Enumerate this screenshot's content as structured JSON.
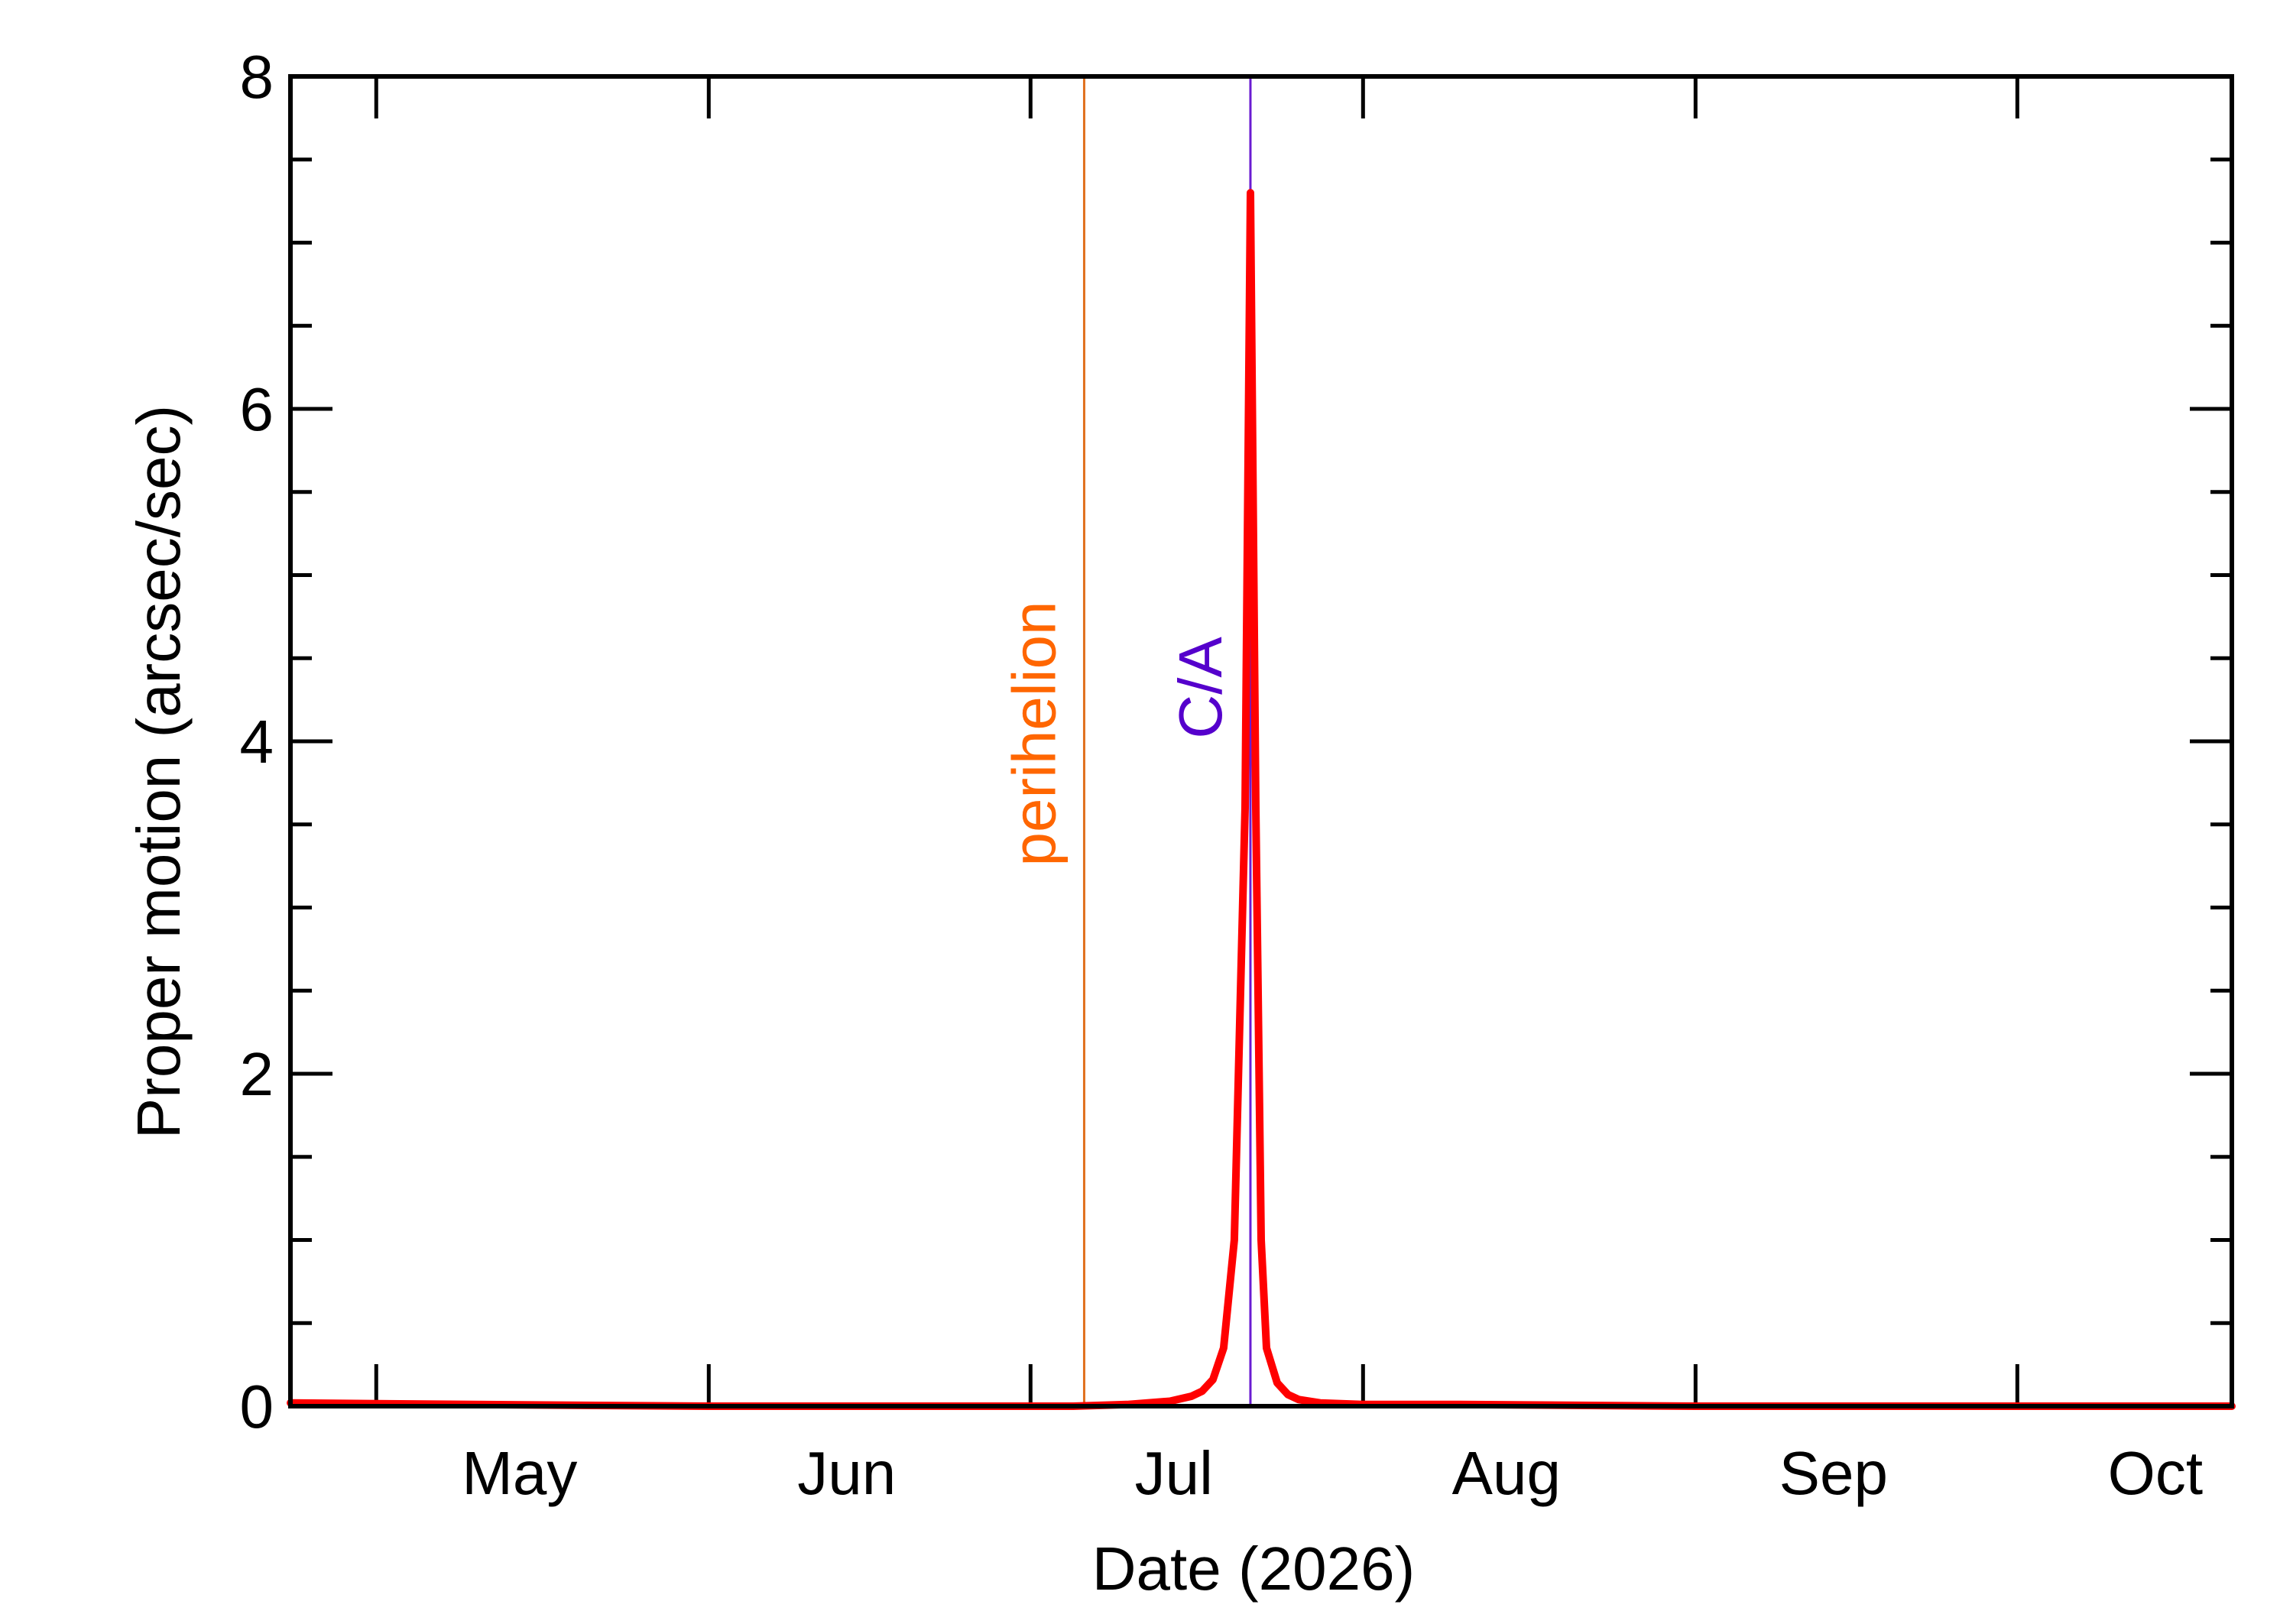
{
  "chart_data": {
    "type": "line",
    "title": "",
    "xlabel": "Date (2026)",
    "ylabel": "Proper motion (arcsec/sec)",
    "xlim": [
      "2026-04-23",
      "2026-10-21"
    ],
    "ylim": [
      0,
      8
    ],
    "y_ticks": [
      0,
      2,
      4,
      6,
      8
    ],
    "y_minor_step": 0.5,
    "x_tick_dates": [
      "2026-05-01",
      "2026-06-01",
      "2026-07-01",
      "2026-08-01",
      "2026-09-01",
      "2026-10-01"
    ],
    "x_tick_labels": [
      "May",
      "Jun",
      "Jul",
      "Aug",
      "Sep",
      "Oct"
    ],
    "grid": false,
    "series": [
      {
        "color": "#ff0000",
        "x": [
          "2026-04-23",
          "2026-05-10",
          "2026-06-01",
          "2026-06-20",
          "2026-07-05",
          "2026-07-10",
          "2026-07-14",
          "2026-07-16",
          "2026-07-17",
          "2026-07-18",
          "2026-07-19",
          "2026-07-20",
          "2026-07-21",
          "2026-07-21T12:00",
          "2026-07-22",
          "2026-07-22T12:00",
          "2026-07-23",
          "2026-07-24",
          "2026-07-25",
          "2026-07-26",
          "2026-07-28",
          "2026-08-01",
          "2026-08-10",
          "2026-09-01",
          "2026-10-01",
          "2026-10-21"
        ],
        "y": [
          0.02,
          0.01,
          0.0,
          0.0,
          0.0,
          0.01,
          0.03,
          0.06,
          0.09,
          0.16,
          0.35,
          1.0,
          3.6,
          7.3,
          3.6,
          1.0,
          0.35,
          0.14,
          0.07,
          0.04,
          0.02,
          0.01,
          0.01,
          0.0,
          0.0,
          0.0
        ]
      }
    ],
    "annotations": [
      {
        "label": "perihelion",
        "x": "2026-07-06",
        "color": "#ff6600",
        "line_color": "#e0701e"
      },
      {
        "label": "C/A",
        "x": "2026-07-21T12:00",
        "color": "#5500cc",
        "line_color": "#6a1bd1"
      }
    ]
  }
}
